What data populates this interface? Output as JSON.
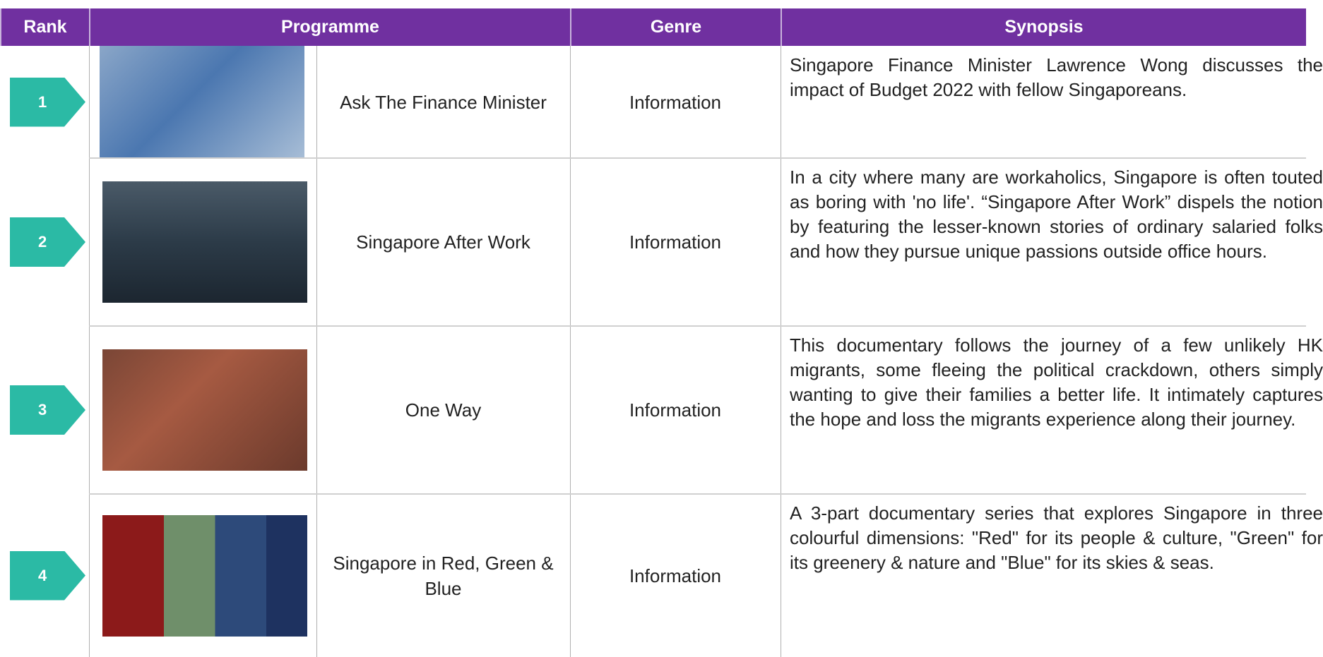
{
  "header": {
    "columns": [
      "Rank",
      "Programme",
      "Genre",
      "Synopsis"
    ]
  },
  "rows": [
    {
      "rank": "1",
      "programme": "Ask The Finance Minister",
      "genre": "Information",
      "synopsis": "Singapore Finance Minister Lawrence Wong discusses the impact of Budget 2022 with fellow Singaporeans."
    },
    {
      "rank": "2",
      "programme": "Singapore After Work",
      "genre": "Information",
      "synopsis": "In a city where many are workaholics, Singapore is often touted as boring with 'no life'. “Singapore After Work” dispels the notion by featuring the lesser-known stories of ordinary salaried folks and how they pursue unique passions outside office hours."
    },
    {
      "rank": "3",
      "programme": "One Way",
      "genre": "Information",
      "synopsis": "This documentary follows the journey of a few unlikely HK migrants, some fleeing the political crackdown, others simply wanting to give their families a better life. It intimately captures the hope and loss the migrants experience along their journey."
    },
    {
      "rank": "4",
      "programme": "Singapore in Red, Green & Blue",
      "genre": "Information",
      "synopsis": "A 3-part documentary series that explores Singapore in three colourful dimensions: \"Red\" for its people & culture, \"Green\" for its greenery & nature and \"Blue\" for its skies & seas."
    }
  ]
}
